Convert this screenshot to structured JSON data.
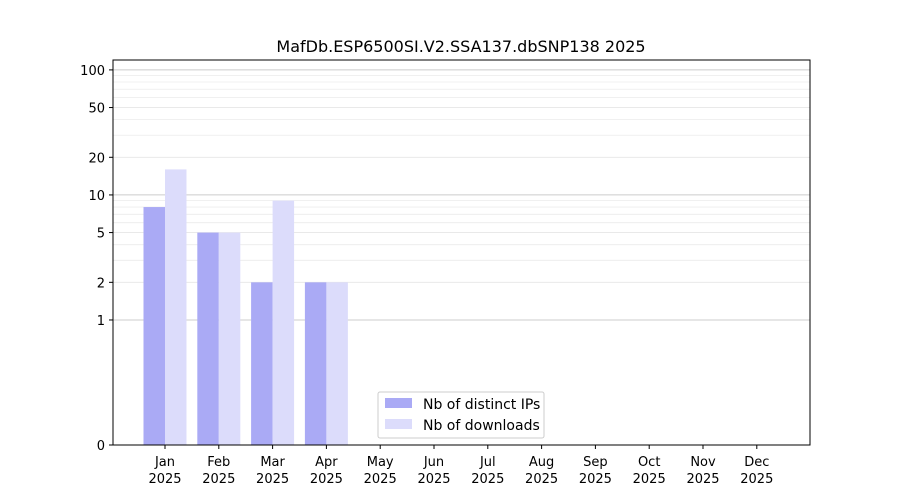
{
  "chart_data": {
    "type": "bar",
    "title": "MafDb.ESP6500SI.V2.SSA137.dbSNP138 2025",
    "xlabel": "",
    "ylabel": "",
    "categories": [
      "Jan\n2025",
      "Feb\n2025",
      "Mar\n2025",
      "Apr\n2025",
      "May\n2025",
      "Jun\n2025",
      "Jul\n2025",
      "Aug\n2025",
      "Sep\n2025",
      "Oct\n2025",
      "Nov\n2025",
      "Dec\n2025"
    ],
    "series": [
      {
        "name": "Nb of distinct IPs",
        "values": [
          8,
          5,
          2,
          2,
          0,
          0,
          0,
          0,
          0,
          0,
          0,
          0
        ],
        "color": "#aaaaf5"
      },
      {
        "name": "Nb of downloads",
        "values": [
          16,
          5,
          9,
          2,
          0,
          0,
          0,
          0,
          0,
          0,
          0,
          0
        ],
        "color": "#dcdcfb"
      }
    ],
    "yscale": "symlog",
    "ylim": [
      0,
      120
    ],
    "yticks": [
      0,
      1,
      2,
      5,
      10,
      20,
      50,
      100
    ],
    "ytick_labels": [
      "0",
      "1",
      "2",
      "5",
      "10",
      "20",
      "50",
      "100"
    ],
    "grid": true,
    "legend_position": "lower-center"
  }
}
